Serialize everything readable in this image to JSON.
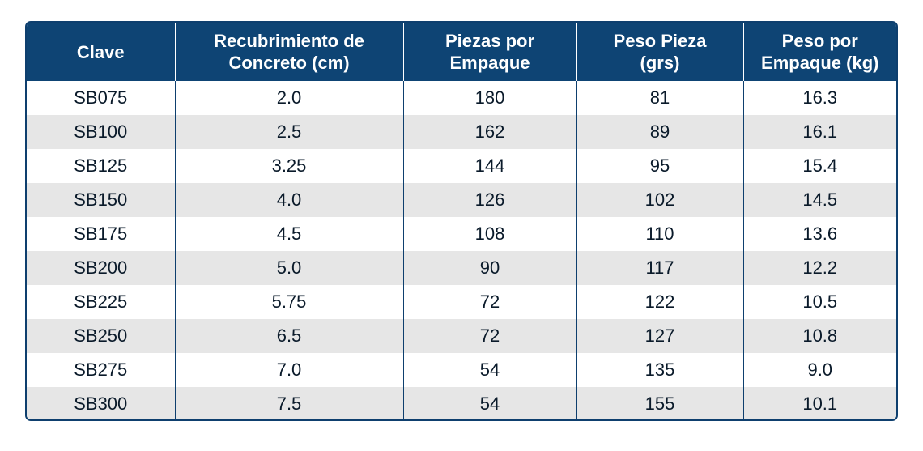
{
  "table": {
    "headers": [
      [
        "Clave"
      ],
      [
        "Recubrimiento de",
        "Concreto (cm)"
      ],
      [
        "Piezas por",
        "Empaque"
      ],
      [
        "Peso Pieza",
        "(grs)"
      ],
      [
        "Peso por",
        "Empaque (kg)"
      ]
    ],
    "rows": [
      [
        "SB075",
        "2.0",
        "180",
        "81",
        "16.3"
      ],
      [
        "SB100",
        "2.5",
        "162",
        "89",
        "16.1"
      ],
      [
        "SB125",
        "3.25",
        "144",
        "95",
        "15.4"
      ],
      [
        "SB150",
        "4.0",
        "126",
        "102",
        "14.5"
      ],
      [
        "SB175",
        "4.5",
        "108",
        "110",
        "13.6"
      ],
      [
        "SB200",
        "5.0",
        "90",
        "117",
        "12.2"
      ],
      [
        "SB225",
        "5.75",
        "72",
        "122",
        "10.5"
      ],
      [
        "SB250",
        "6.5",
        "72",
        "127",
        "10.8"
      ],
      [
        "SB275",
        "7.0",
        "54",
        "135",
        "9.0"
      ],
      [
        "SB300",
        "7.5",
        "54",
        "155",
        "10.1"
      ]
    ]
  },
  "colors": {
    "header_bg": "#0e4474",
    "border": "#0e3f6e",
    "stripe": "#e6e6e6"
  }
}
